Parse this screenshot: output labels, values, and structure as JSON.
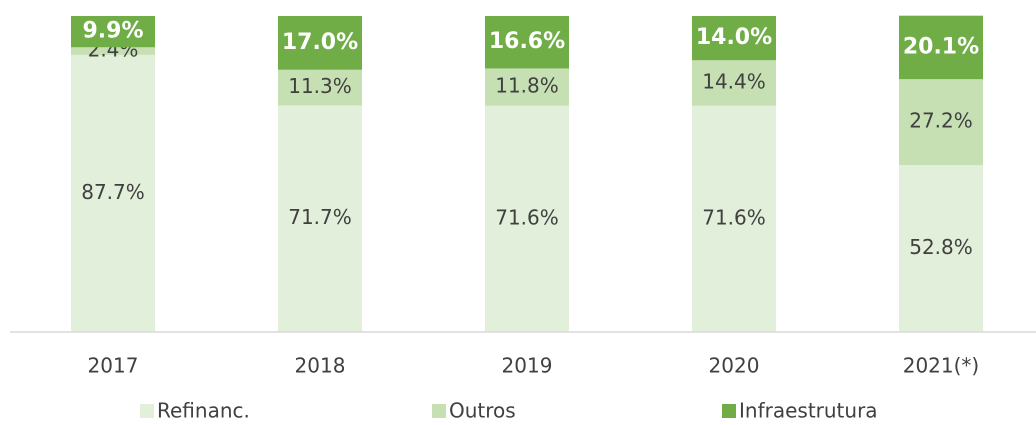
{
  "chart_data": {
    "type": "stacked_bar",
    "categories": [
      "2017",
      "2018",
      "2019",
      "2020",
      "2021(*)"
    ],
    "ylim": [
      0,
      100
    ],
    "legend": "bottom",
    "series": [
      {
        "name": "Refinanc.",
        "color": "#e2efda",
        "values": [
          87.7,
          71.7,
          71.6,
          71.6,
          52.8
        ],
        "value_labels": [
          "87.7%",
          "71.7%",
          "71.6%",
          "71.6%",
          "52.8%"
        ]
      },
      {
        "name": "Outros",
        "color": "#c6e0b4",
        "values": [
          2.4,
          11.3,
          11.8,
          14.4,
          27.2
        ],
        "value_labels": [
          "2.4%",
          "11.3%",
          "11.8%",
          "14.4%",
          "27.2%"
        ]
      },
      {
        "name": "Infraestrutura",
        "color": "#70ad47",
        "values": [
          9.9,
          17.0,
          16.6,
          14.0,
          20.1
        ],
        "value_labels": [
          "9.9%",
          "17.0%",
          "16.6%",
          "14.0%",
          "20.1%"
        ]
      }
    ]
  }
}
